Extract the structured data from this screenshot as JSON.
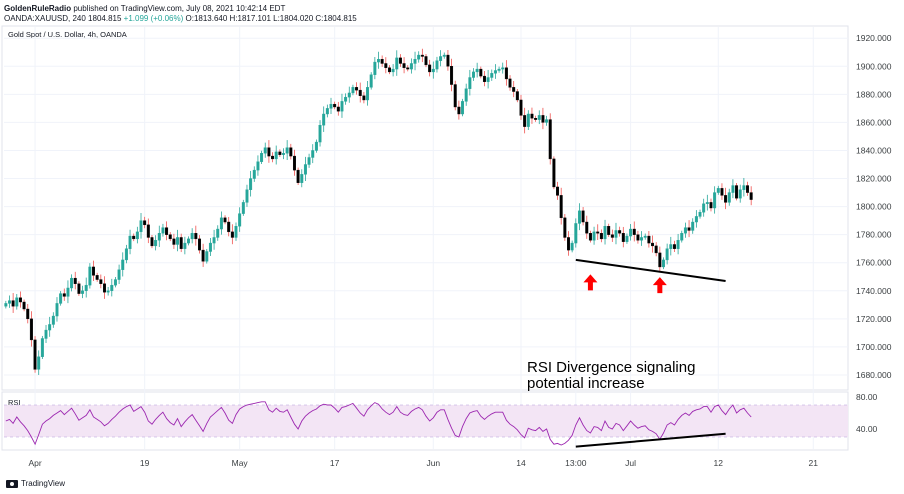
{
  "header": {
    "author": "GoldenRuleRadio",
    "published": "published on TradingView.com, July 08, 2021 10:42:14 EDT",
    "symbol_line": "OANDA:XAUUSD, 240",
    "last": "1804.815",
    "change": "+1.099 (+0.06%)",
    "ohlc": "O:1813.640 H:1817.101 L:1804.020 C:1804.815"
  },
  "chart_title": "Gold Spot / U.S. Dollar, 4h, OANDA",
  "annotation_text": [
    "RSI Divergence signaling",
    "potential increase"
  ],
  "rsi_label": "RSI",
  "footer": {
    "brand": "TradingView"
  },
  "colors": {
    "up": "#26a69a",
    "down": "#ef5350",
    "candle_body_down": "#000000",
    "rsi_line": "#9c27b0",
    "rsi_band": "#f3e5f5",
    "arrow": "#ff0000",
    "trendline": "#000000"
  },
  "chart_data": {
    "type": "candlestick",
    "title": "Gold Spot / U.S. Dollar, 4h, OANDA",
    "price_axis": {
      "ticks": [
        1680,
        1700,
        1720,
        1740,
        1760,
        1780,
        1800,
        1820,
        1840,
        1860,
        1880,
        1900,
        1920
      ],
      "tick_labels": [
        "1680.000",
        "1700.000",
        "1720.000",
        "1740.000",
        "1760.000",
        "1780.000",
        "1800.000",
        "1820.000",
        "1840.000",
        "1860.000",
        "1880.000",
        "1900.000",
        "1920.000"
      ],
      "range": [
        1670,
        1928
      ]
    },
    "time_axis": {
      "labels": [
        "Apr",
        "19",
        "May",
        "17",
        "Jun",
        "14",
        "13:00",
        "Jul",
        "12",
        "21"
      ],
      "label_index": [
        8,
        38,
        64,
        90,
        117,
        141,
        156,
        171,
        195,
        221
      ],
      "visible_bars": 231
    },
    "series_closes": [
      1731,
      1733,
      1729,
      1735,
      1732,
      1727,
      1720,
      1705,
      1684,
      1693,
      1706,
      1712,
      1716,
      1722,
      1731,
      1738,
      1736,
      1742,
      1749,
      1745,
      1738,
      1740,
      1744,
      1757,
      1751,
      1748,
      1745,
      1739,
      1740,
      1744,
      1748,
      1755,
      1762,
      1770,
      1779,
      1777,
      1782,
      1790,
      1787,
      1778,
      1772,
      1776,
      1781,
      1785,
      1780,
      1777,
      1773,
      1778,
      1770,
      1774,
      1777,
      1781,
      1777,
      1769,
      1761,
      1768,
      1774,
      1778,
      1784,
      1792,
      1789,
      1782,
      1778,
      1786,
      1795,
      1803,
      1812,
      1820,
      1826,
      1832,
      1838,
      1842,
      1836,
      1834,
      1839,
      1837,
      1838,
      1842,
      1836,
      1826,
      1817,
      1823,
      1830,
      1835,
      1840,
      1846,
      1858,
      1866,
      1870,
      1873,
      1871,
      1868,
      1875,
      1878,
      1881,
      1885,
      1883,
      1879,
      1876,
      1885,
      1894,
      1903,
      1905,
      1902,
      1899,
      1896,
      1898,
      1906,
      1902,
      1899,
      1898,
      1902,
      1905,
      1908,
      1907,
      1901,
      1896,
      1898,
      1904,
      1907,
      1908,
      1900,
      1887,
      1871,
      1866,
      1875,
      1884,
      1892,
      1896,
      1898,
      1893,
      1889,
      1892,
      1895,
      1897,
      1898,
      1899,
      1891,
      1885,
      1882,
      1876,
      1865,
      1857,
      1866,
      1863,
      1862,
      1865,
      1860,
      1862,
      1834,
      1814,
      1808,
      1792,
      1778,
      1769,
      1774,
      1788,
      1797,
      1789,
      1781,
      1776,
      1782,
      1781,
      1777,
      1786,
      1780,
      1778,
      1783,
      1781,
      1775,
      1779,
      1784,
      1780,
      1776,
      1778,
      1779,
      1774,
      1772,
      1767,
      1757,
      1762,
      1770,
      1773,
      1770,
      1776,
      1781,
      1785,
      1783,
      1789,
      1793,
      1796,
      1802,
      1803,
      1799,
      1810,
      1813,
      1808,
      1803,
      1810,
      1815,
      1806,
      1812,
      1815,
      1810,
      1805
    ],
    "rsi": {
      "ticks": [
        40,
        80
      ],
      "tick_labels": [
        "40.00",
        "80.00"
      ],
      "band": [
        30,
        70
      ],
      "range": [
        15,
        85
      ],
      "values": [
        50,
        52,
        47,
        55,
        49,
        44,
        38,
        30,
        21,
        33,
        46,
        50,
        53,
        57,
        60,
        63,
        58,
        62,
        66,
        59,
        51,
        54,
        57,
        64,
        55,
        52,
        49,
        44,
        47,
        52,
        56,
        61,
        65,
        68,
        70,
        62,
        65,
        68,
        61,
        50,
        46,
        52,
        57,
        61,
        53,
        48,
        45,
        53,
        43,
        49,
        54,
        58,
        51,
        44,
        37,
        47,
        55,
        59,
        63,
        67,
        60,
        51,
        47,
        58,
        65,
        68,
        70,
        71,
        72,
        73,
        74,
        74,
        64,
        61,
        66,
        62,
        61,
        64,
        55,
        46,
        40,
        50,
        56,
        60,
        63,
        65,
        69,
        71,
        70,
        70,
        66,
        61,
        67,
        68,
        70,
        72,
        66,
        60,
        56,
        64,
        69,
        73,
        71,
        65,
        61,
        58,
        61,
        68,
        61,
        58,
        57,
        62,
        65,
        67,
        64,
        56,
        50,
        54,
        61,
        64,
        64,
        52,
        41,
        32,
        30,
        43,
        53,
        60,
        62,
        63,
        56,
        52,
        56,
        59,
        61,
        61,
        61,
        51,
        46,
        43,
        39,
        33,
        29,
        41,
        39,
        38,
        42,
        37,
        40,
        27,
        21,
        22,
        20,
        22,
        26,
        32,
        45,
        54,
        45,
        38,
        35,
        43,
        42,
        38,
        50,
        42,
        40,
        47,
        45,
        38,
        44,
        50,
        45,
        41,
        43,
        44,
        39,
        37,
        34,
        27,
        35,
        45,
        48,
        45,
        52,
        57,
        60,
        57,
        62,
        64,
        65,
        68,
        68,
        61,
        68,
        70,
        63,
        58,
        65,
        70,
        60,
        64,
        66,
        60,
        55
      ]
    },
    "annotations": {
      "price_trendline": {
        "from": [
          156,
          1762
        ],
        "to": [
          197,
          1747
        ]
      },
      "rsi_trendline": {
        "from": [
          156,
          18
        ],
        "to": [
          197,
          34
        ]
      },
      "arrows_at": [
        [
          160,
          1746
        ],
        [
          179,
          1744
        ]
      ],
      "text": "RSI Divergence signaling potential increase"
    }
  }
}
